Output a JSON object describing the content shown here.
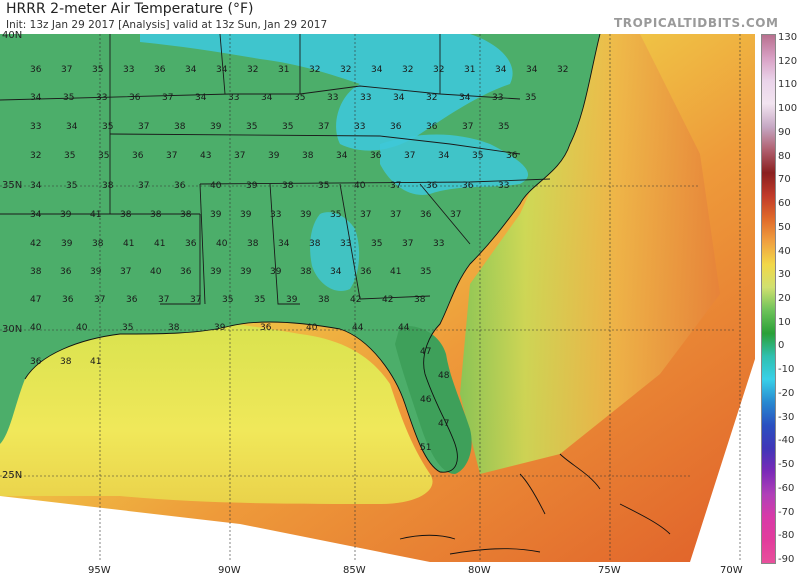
{
  "header": {
    "title": "HRRR 2-meter Air Temperature (°F)",
    "subtitle": "Init: 13z Jan 29 2017   [Analysis]   valid at 13z Sun, Jan 29 2017",
    "brand": "TROPICALTIDBITS.COM"
  },
  "map": {
    "lat_labels": [
      "40N",
      "35N",
      "30N",
      "25N"
    ],
    "lon_labels": [
      "95W",
      "90W",
      "85W",
      "80W",
      "75W",
      "70W"
    ],
    "stations": [
      "36",
      "37",
      "35",
      "33",
      "36",
      "34",
      "34",
      "32",
      "31",
      "32",
      "32",
      "34",
      "32",
      "32",
      "31",
      "34",
      "34",
      "32",
      "34",
      "35",
      "33",
      "36",
      "37",
      "34",
      "33",
      "34",
      "35",
      "33",
      "33",
      "34",
      "32",
      "34",
      "33",
      "35",
      "33",
      "34",
      "35",
      "37",
      "38",
      "39",
      "35",
      "35",
      "37",
      "33",
      "36",
      "36",
      "37",
      "35",
      "32",
      "35",
      "35",
      "36",
      "37",
      "43",
      "37",
      "39",
      "38",
      "34",
      "36",
      "37",
      "34",
      "35",
      "36",
      "34",
      "35",
      "38",
      "37",
      "36",
      "40",
      "39",
      "38",
      "35",
      "40",
      "37",
      "36",
      "36",
      "33",
      "34",
      "39",
      "41",
      "38",
      "38",
      "38",
      "39",
      "39",
      "33",
      "39",
      "35",
      "37",
      "37",
      "36",
      "37",
      "42",
      "39",
      "38",
      "41",
      "41",
      "36",
      "40",
      "38",
      "34",
      "38",
      "33",
      "35",
      "37",
      "33",
      "38",
      "36",
      "39",
      "37",
      "40",
      "36",
      "39",
      "39",
      "39",
      "38",
      "34",
      "36",
      "41",
      "35",
      "47",
      "36",
      "37",
      "36",
      "37",
      "37",
      "35",
      "35",
      "39",
      "38",
      "42",
      "42",
      "38",
      "40",
      "40",
      "35",
      "38",
      "39",
      "36",
      "40",
      "44",
      "44",
      "36",
      "38",
      "41",
      "47",
      "48",
      "46",
      "47",
      "51"
    ],
    "land_color": "#4cae6a",
    "ocean_near_color": "#e6dc52",
    "ocean_far_color": "#e06b2c"
  },
  "colorbar": {
    "labels": [
      "130",
      "120",
      "110",
      "100",
      "90",
      "80",
      "70",
      "60",
      "50",
      "40",
      "30",
      "20",
      "10",
      "0",
      "-10",
      "-20",
      "-30",
      "-40",
      "-50",
      "-60",
      "-70",
      "-80",
      "-90"
    ],
    "colors": [
      "#b8708f",
      "#d8a0c4",
      "#ead4ea",
      "#f2e4f0",
      "#c6a8c4",
      "#b06070",
      "#8a2020",
      "#c03a2a",
      "#e06a2a",
      "#f0a040",
      "#f2d848",
      "#d0e070",
      "#6cc25a",
      "#2aa038",
      "#30c0b0",
      "#38d0e8",
      "#2888d0",
      "#2a50c0",
      "#4036b8",
      "#7a2ab8",
      "#b040b8",
      "#d83aa8",
      "#e23c9c",
      "#e8509c"
    ]
  }
}
